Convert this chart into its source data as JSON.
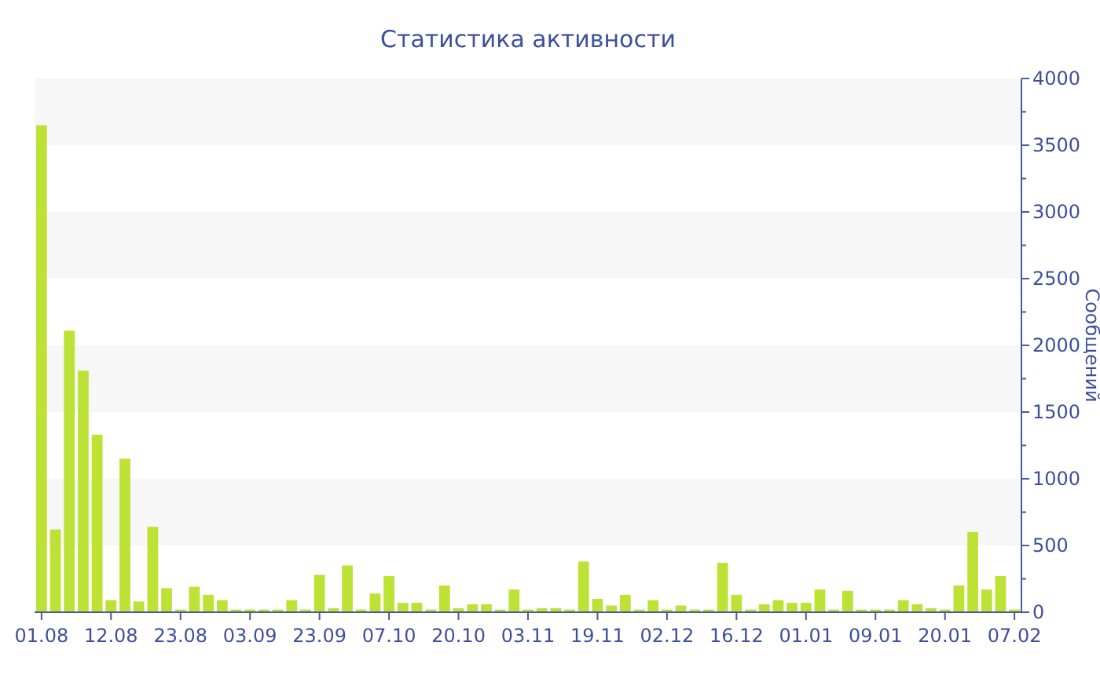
{
  "chart_data": {
    "type": "bar",
    "title": "Статистика активности",
    "ylabel": "Сообщений",
    "categories": [
      "01.08",
      null,
      null,
      null,
      null,
      "12.08",
      null,
      null,
      null,
      null,
      "23.08",
      null,
      null,
      null,
      null,
      "03.09",
      null,
      null,
      null,
      null,
      "23.09",
      null,
      null,
      null,
      null,
      "07.10",
      null,
      null,
      null,
      null,
      "20.10",
      null,
      null,
      null,
      null,
      "03.11",
      null,
      null,
      null,
      null,
      "19.11",
      null,
      null,
      null,
      null,
      "02.12",
      null,
      null,
      null,
      null,
      "16.12",
      null,
      null,
      null,
      null,
      "01.01",
      null,
      null,
      null,
      null,
      "09.01",
      null,
      null,
      null,
      null,
      "20.01",
      null,
      null,
      null,
      null,
      "07.02"
    ],
    "values": [
      3650,
      620,
      2110,
      1810,
      1330,
      90,
      1150,
      80,
      640,
      180,
      20,
      190,
      130,
      90,
      20,
      20,
      20,
      20,
      90,
      20,
      280,
      30,
      350,
      20,
      140,
      270,
      70,
      70,
      20,
      200,
      30,
      60,
      60,
      20,
      170,
      20,
      30,
      30,
      20,
      380,
      100,
      50,
      130,
      20,
      90,
      20,
      50,
      20,
      20,
      370,
      130,
      20,
      60,
      90,
      70,
      70,
      170,
      20,
      160,
      20,
      20,
      20,
      90,
      60,
      30,
      20,
      200,
      600,
      170,
      270,
      20
    ],
    "color": "#bde236",
    "ylim": [
      0,
      4000
    ],
    "yticks": [
      0,
      {
        "value": 250,
        "label": null
      },
      500,
      {
        "value": 750,
        "label": null
      },
      1000,
      {
        "value": 1250,
        "label": null
      },
      1500,
      {
        "value": 1750,
        "label": null
      },
      2000,
      {
        "value": 2250,
        "label": null
      },
      2500,
      {
        "value": 2750,
        "label": null
      },
      3000,
      {
        "value": 3250,
        "label": null
      },
      3500,
      {
        "value": 3750,
        "label": null
      },
      4000
    ],
    "bands": [
      {
        "axis": "y",
        "from": 500,
        "to": 1000,
        "color": "#f7f7f7"
      },
      {
        "axis": "y",
        "from": 1500,
        "to": 2000,
        "color": "#f7f7f7"
      },
      {
        "axis": "y",
        "from": 2500,
        "to": 3000,
        "color": "#f7f7f7"
      },
      {
        "axis": "y",
        "from": 3500,
        "to": 4000,
        "color": "#f7f7f7"
      }
    ]
  }
}
